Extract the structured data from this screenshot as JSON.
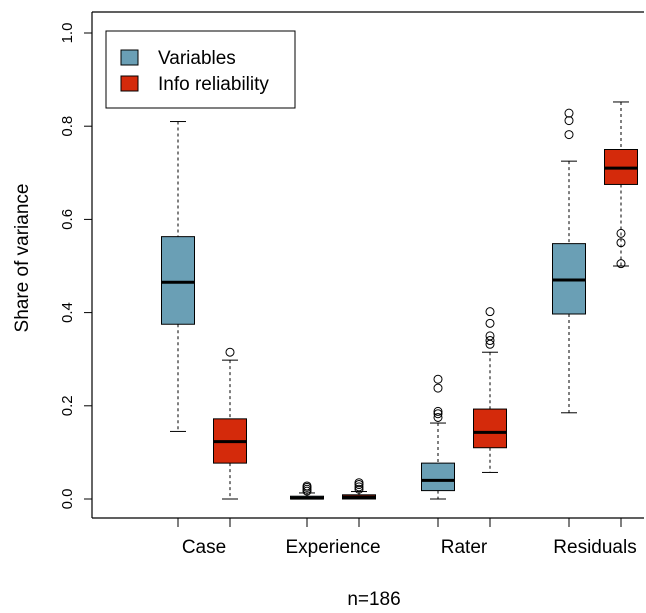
{
  "chart_data": {
    "type": "boxplot",
    "title": "",
    "xlabel": "",
    "ylabel": "Share of variance",
    "footnote": "n=186",
    "ylim": [
      0,
      1.0
    ],
    "yticks": [
      "0.0",
      "0.2",
      "0.4",
      "0.6",
      "0.8",
      "1.0"
    ],
    "categories": [
      "Case",
      "Experience",
      "Rater",
      "Residuals"
    ],
    "legend": {
      "placement": "top-left"
    },
    "colors": {
      "Variables": "#6a9fb5",
      "Info reliability": "#d42a0b"
    },
    "series": [
      {
        "name": "Variables",
        "boxes": [
          {
            "min": 0.145,
            "q1": 0.375,
            "median": 0.465,
            "q3": 0.563,
            "max": 0.81,
            "outliers": []
          },
          {
            "min": 0.0,
            "q1": 0.0,
            "median": 0.002,
            "q3": 0.006,
            "max": 0.013,
            "outliers": [
              0.017,
              0.021,
              0.025,
              0.028
            ]
          },
          {
            "min": 0.0,
            "q1": 0.018,
            "median": 0.04,
            "q3": 0.077,
            "max": 0.163,
            "outliers": [
              0.175,
              0.183,
              0.188,
              0.238,
              0.257
            ]
          },
          {
            "min": 0.185,
            "q1": 0.397,
            "median": 0.47,
            "q3": 0.548,
            "max": 0.725,
            "outliers": [
              0.782,
              0.812,
              0.828
            ]
          }
        ]
      },
      {
        "name": "Info reliability",
        "boxes": [
          {
            "min": 0.0,
            "q1": 0.077,
            "median": 0.123,
            "q3": 0.172,
            "max": 0.298,
            "outliers": [
              0.315
            ]
          },
          {
            "min": 0.0,
            "q1": 0.0,
            "median": 0.004,
            "q3": 0.009,
            "max": 0.016,
            "outliers": [
              0.021,
              0.026,
              0.031,
              0.035
            ]
          },
          {
            "min": 0.057,
            "q1": 0.11,
            "median": 0.143,
            "q3": 0.193,
            "max": 0.315,
            "outliers": [
              0.332,
              0.34,
              0.35,
              0.377,
              0.402
            ]
          },
          {
            "min": 0.5,
            "q1": 0.675,
            "median": 0.71,
            "q3": 0.75,
            "max": 0.852,
            "outliers": [
              0.505,
              0.55,
              0.57
            ]
          }
        ]
      }
    ]
  }
}
